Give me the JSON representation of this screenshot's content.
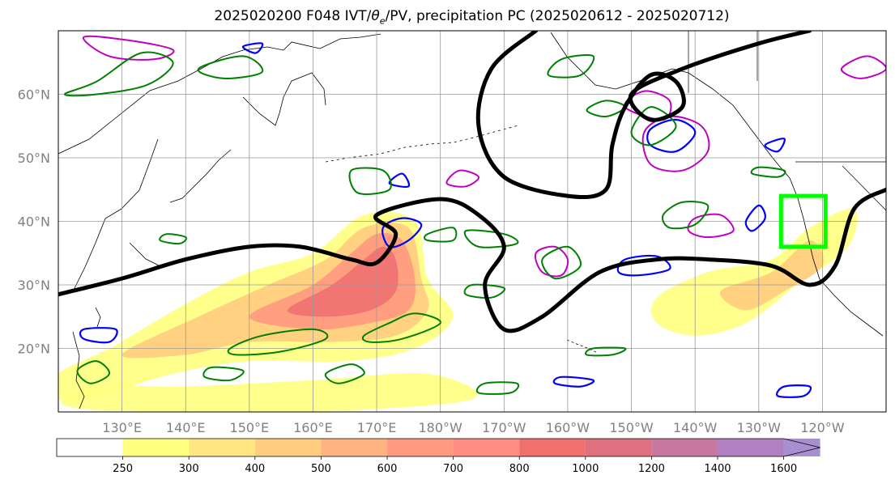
{
  "title_parts": {
    "prefix": "2025020200 F048 IVT/",
    "theta_symbol": "θ",
    "theta_sub": "e",
    "suffix": "/PV, precipitation PC (2025020612 - 2025020712)"
  },
  "chart_data": {
    "type": "heatmap",
    "projection": "cylindrical",
    "lon_range": [
      120,
      250
    ],
    "lat_range": [
      10,
      70
    ],
    "grid": true,
    "lat_ticks": [
      {
        "value": 20,
        "label": "20°N"
      },
      {
        "value": 30,
        "label": "30°N"
      },
      {
        "value": 40,
        "label": "40°N"
      },
      {
        "value": 50,
        "label": "50°N"
      },
      {
        "value": 60,
        "label": "60°N"
      }
    ],
    "lon_ticks": [
      {
        "value": 130,
        "label": "130°E"
      },
      {
        "value": 140,
        "label": "140°E"
      },
      {
        "value": 150,
        "label": "150°E"
      },
      {
        "value": 160,
        "label": "160°E"
      },
      {
        "value": 170,
        "label": "170°E"
      },
      {
        "value": 180,
        "label": "180°W"
      },
      {
        "value": 190,
        "label": "170°W"
      },
      {
        "value": 200,
        "label": "160°W"
      },
      {
        "value": 210,
        "label": "150°W"
      },
      {
        "value": 220,
        "label": "140°W"
      },
      {
        "value": 230,
        "label": "130°W"
      },
      {
        "value": 240,
        "label": "120°W"
      }
    ],
    "colorbar": {
      "levels": [
        250,
        300,
        400,
        500,
        600,
        700,
        800,
        1000,
        1200,
        1400,
        1600
      ],
      "colors": [
        "#ffff80",
        "#ffe680",
        "#ffcc80",
        "#ffb380",
        "#ff9980",
        "#ff8c80",
        "#f07070",
        "#e07080",
        "#c878a0",
        "#b080c0",
        "#a890d0"
      ],
      "extend": "max"
    },
    "ivt_plumes": [
      {
        "level": 250,
        "poly": [
          [
            120,
            16
          ],
          [
            128,
            20
          ],
          [
            140,
            27
          ],
          [
            150,
            32
          ],
          [
            160,
            35
          ],
          [
            168,
            41
          ],
          [
            176,
            40
          ],
          [
            178,
            31
          ],
          [
            182,
            25
          ],
          [
            176,
            20
          ],
          [
            165,
            18
          ],
          [
            150,
            18
          ],
          [
            138,
            16
          ],
          [
            128,
            13
          ],
          [
            120,
            12
          ]
        ]
      },
      {
        "level": 400,
        "poly": [
          [
            130,
            19
          ],
          [
            142,
            25
          ],
          [
            153,
            30
          ],
          [
            162,
            34
          ],
          [
            168,
            39
          ],
          [
            175,
            39
          ],
          [
            177,
            31
          ],
          [
            178,
            26
          ],
          [
            173,
            22
          ],
          [
            163,
            21
          ],
          [
            150,
            21
          ],
          [
            140,
            19
          ]
        ]
      },
      {
        "level": 600,
        "poly": [
          [
            150,
            25
          ],
          [
            160,
            30
          ],
          [
            166,
            35
          ],
          [
            170,
            38
          ],
          [
            174,
            37
          ],
          [
            176,
            31
          ],
          [
            175,
            26
          ],
          [
            169,
            24
          ],
          [
            160,
            23
          ]
        ]
      },
      {
        "level": 800,
        "poly": [
          [
            156,
            26
          ],
          [
            163,
            30
          ],
          [
            168,
            34
          ],
          [
            171,
            36
          ],
          [
            173,
            34
          ],
          [
            173,
            29
          ],
          [
            169,
            26
          ],
          [
            162,
            25
          ]
        ]
      },
      {
        "level": 250,
        "poly": [
          [
            121,
            11
          ],
          [
            135,
            10
          ],
          [
            160,
            10
          ],
          [
            185,
            12
          ],
          [
            178,
            16
          ],
          [
            160,
            15
          ],
          [
            140,
            14
          ],
          [
            125,
            14
          ]
        ]
      },
      {
        "level": 250,
        "poly": [
          [
            214,
            28
          ],
          [
            222,
            32
          ],
          [
            232,
            34
          ],
          [
            238,
            39
          ],
          [
            245,
            42
          ],
          [
            244,
            36
          ],
          [
            236,
            30
          ],
          [
            228,
            24
          ],
          [
            220,
            22
          ],
          [
            214,
            24
          ]
        ]
      },
      {
        "level": 400,
        "poly": [
          [
            224,
            29
          ],
          [
            232,
            32
          ],
          [
            238,
            37
          ],
          [
            240,
            33
          ],
          [
            234,
            29
          ],
          [
            228,
            26
          ]
        ]
      }
    ],
    "pv_lines": [
      [
        [
          120,
          28.5
        ],
        [
          130,
          31
        ],
        [
          140,
          34
        ],
        [
          150,
          36
        ],
        [
          158,
          36
        ],
        [
          166,
          34
        ],
        [
          170,
          33.5
        ],
        [
          173,
          38
        ],
        [
          170,
          41
        ],
        [
          180,
          43.5
        ],
        [
          186,
          41
        ],
        [
          190,
          36
        ],
        [
          187,
          30
        ],
        [
          190,
          23
        ],
        [
          196,
          25
        ],
        [
          205,
          32
        ],
        [
          214,
          34
        ],
        [
          222,
          34
        ],
        [
          232,
          33
        ],
        [
          238,
          30
        ],
        [
          242,
          33
        ],
        [
          245,
          42
        ],
        [
          250,
          45
        ]
      ],
      [
        [
          195,
          70
        ],
        [
          188,
          64
        ],
        [
          186,
          55
        ],
        [
          190,
          47
        ],
        [
          200,
          44
        ],
        [
          206,
          45
        ],
        [
          207,
          52
        ],
        [
          209,
          58
        ],
        [
          213,
          63
        ],
        [
          217,
          62
        ],
        [
          218,
          58
        ],
        [
          213,
          56
        ],
        [
          210,
          60
        ],
        [
          218,
          64
        ],
        [
          230,
          68
        ],
        [
          238,
          70
        ]
      ]
    ],
    "green_contours": [
      [
        [
          168,
          22
        ],
        [
          172,
          24
        ],
        [
          176,
          25.5
        ],
        [
          180,
          24
        ],
        [
          174,
          21.5
        ],
        [
          169,
          21
        ]
      ],
      [
        [
          147,
          20
        ],
        [
          152,
          22
        ],
        [
          160,
          23
        ],
        [
          162,
          21.5
        ],
        [
          155,
          19.5
        ],
        [
          148,
          19
        ]
      ],
      [
        [
          121,
          60
        ],
        [
          126,
          62
        ],
        [
          133,
          66.5
        ],
        [
          138,
          65
        ],
        [
          134,
          61.5
        ],
        [
          126,
          60
        ]
      ],
      [
        [
          142,
          64
        ],
        [
          149,
          66
        ],
        [
          152,
          63.5
        ],
        [
          146,
          62.5
        ]
      ],
      [
        [
          197,
          63
        ],
        [
          199,
          65.5
        ],
        [
          204,
          66
        ],
        [
          202,
          63
        ]
      ],
      [
        [
          203,
          57.5
        ],
        [
          206,
          59
        ],
        [
          209,
          58
        ],
        [
          206,
          56.5
        ]
      ],
      [
        [
          213,
          58
        ],
        [
          217,
          55
        ],
        [
          213,
          52
        ],
        [
          210,
          54
        ]
      ],
      [
        [
          215,
          41
        ],
        [
          218,
          43
        ],
        [
          222,
          42.5
        ],
        [
          220,
          39.5
        ],
        [
          216,
          39
        ]
      ],
      [
        [
          184,
          38.5
        ],
        [
          190,
          38
        ],
        [
          192,
          36.5
        ],
        [
          186,
          36
        ]
      ],
      [
        [
          200,
          36
        ],
        [
          202,
          33
        ],
        [
          198,
          31
        ],
        [
          196,
          34
        ]
      ],
      [
        [
          185,
          30
        ],
        [
          190,
          29.5
        ],
        [
          188,
          28
        ],
        [
          184,
          28.5
        ]
      ],
      [
        [
          187,
          14.5
        ],
        [
          192,
          14.5
        ],
        [
          191,
          13
        ],
        [
          186,
          13
        ]
      ],
      [
        [
          144,
          17
        ],
        [
          149,
          16.5
        ],
        [
          147,
          15
        ],
        [
          143,
          15.5
        ]
      ],
      [
        [
          166,
          48
        ],
        [
          171,
          48
        ],
        [
          172,
          45
        ],
        [
          167,
          44.5
        ]
      ],
      [
        [
          178,
          38
        ],
        [
          182,
          39
        ],
        [
          182,
          37
        ],
        [
          178,
          37
        ]
      ],
      [
        [
          204,
          20
        ],
        [
          209,
          20
        ],
        [
          207,
          19
        ],
        [
          203,
          19
        ]
      ],
      [
        [
          162,
          16
        ],
        [
          166,
          17.5
        ],
        [
          168,
          16
        ],
        [
          164,
          14.5
        ]
      ],
      [
        [
          137,
          38
        ],
        [
          140,
          37.5
        ],
        [
          139,
          36.5
        ],
        [
          136,
          37
        ]
      ],
      [
        [
          230,
          48.5
        ],
        [
          234,
          48
        ],
        [
          233,
          47
        ],
        [
          229,
          47.5
        ]
      ],
      [
        [
          123,
          16.5
        ],
        [
          126,
          18
        ],
        [
          128,
          16
        ],
        [
          125,
          14.5
        ]
      ]
    ],
    "blue_contours": [
      [
        [
          171,
          39
        ],
        [
          174,
          40.5
        ],
        [
          177,
          39.5
        ],
        [
          175,
          37
        ],
        [
          172,
          36
        ]
      ],
      [
        [
          209,
          34
        ],
        [
          214,
          34.5
        ],
        [
          216,
          32.5
        ],
        [
          211,
          31.5
        ],
        [
          208,
          32
        ]
      ],
      [
        [
          213,
          54.5
        ],
        [
          217,
          56
        ],
        [
          220,
          54
        ],
        [
          217,
          51
        ],
        [
          213,
          52
        ]
      ],
      [
        [
          228,
          40
        ],
        [
          230,
          42.5
        ],
        [
          231,
          40.5
        ],
        [
          229,
          38.5
        ]
      ],
      [
        [
          124,
          23
        ],
        [
          129,
          23
        ],
        [
          128,
          21
        ],
        [
          124,
          21.5
        ]
      ],
      [
        [
          199,
          15.5
        ],
        [
          204,
          15
        ],
        [
          202,
          14
        ],
        [
          198,
          14.5
        ]
      ],
      [
        [
          231,
          52
        ],
        [
          234,
          53
        ],
        [
          233,
          51
        ]
      ],
      [
        [
          234,
          14
        ],
        [
          238,
          14
        ],
        [
          237,
          12.5
        ],
        [
          233,
          12.5
        ]
      ],
      [
        [
          172,
          46
        ],
        [
          174,
          47.5
        ],
        [
          175,
          45.5
        ]
      ],
      [
        [
          149,
          67.5
        ],
        [
          152,
          68
        ],
        [
          151,
          66.5
        ]
      ]
    ],
    "magenta_contours": [
      [
        [
          195,
          35
        ],
        [
          198,
          36
        ],
        [
          200,
          34
        ],
        [
          199,
          31.5
        ],
        [
          196,
          32
        ]
      ],
      [
        [
          212,
          54
        ],
        [
          216,
          56.5
        ],
        [
          221,
          55
        ],
        [
          222,
          51
        ],
        [
          218,
          48
        ],
        [
          213,
          49
        ]
      ],
      [
        [
          209,
          58
        ],
        [
          212,
          60.5
        ],
        [
          216,
          59
        ],
        [
          215,
          56
        ]
      ],
      [
        [
          220,
          40.5
        ],
        [
          224,
          41
        ],
        [
          226,
          38.5
        ],
        [
          222,
          37.5
        ],
        [
          219,
          38.5
        ]
      ],
      [
        [
          243,
          64
        ],
        [
          247,
          66
        ],
        [
          250,
          64
        ],
        [
          246,
          62.5
        ]
      ],
      [
        [
          124,
          69
        ],
        [
          131,
          68.5
        ],
        [
          138,
          67
        ],
        [
          135,
          65.5
        ],
        [
          128,
          66
        ]
      ],
      [
        [
          183,
          48
        ],
        [
          186,
          47
        ],
        [
          184,
          45.5
        ],
        [
          181,
          46
        ]
      ]
    ],
    "green_box": {
      "lon": [
        233.5,
        240.5
      ],
      "lat": [
        36,
        44
      ]
    }
  }
}
